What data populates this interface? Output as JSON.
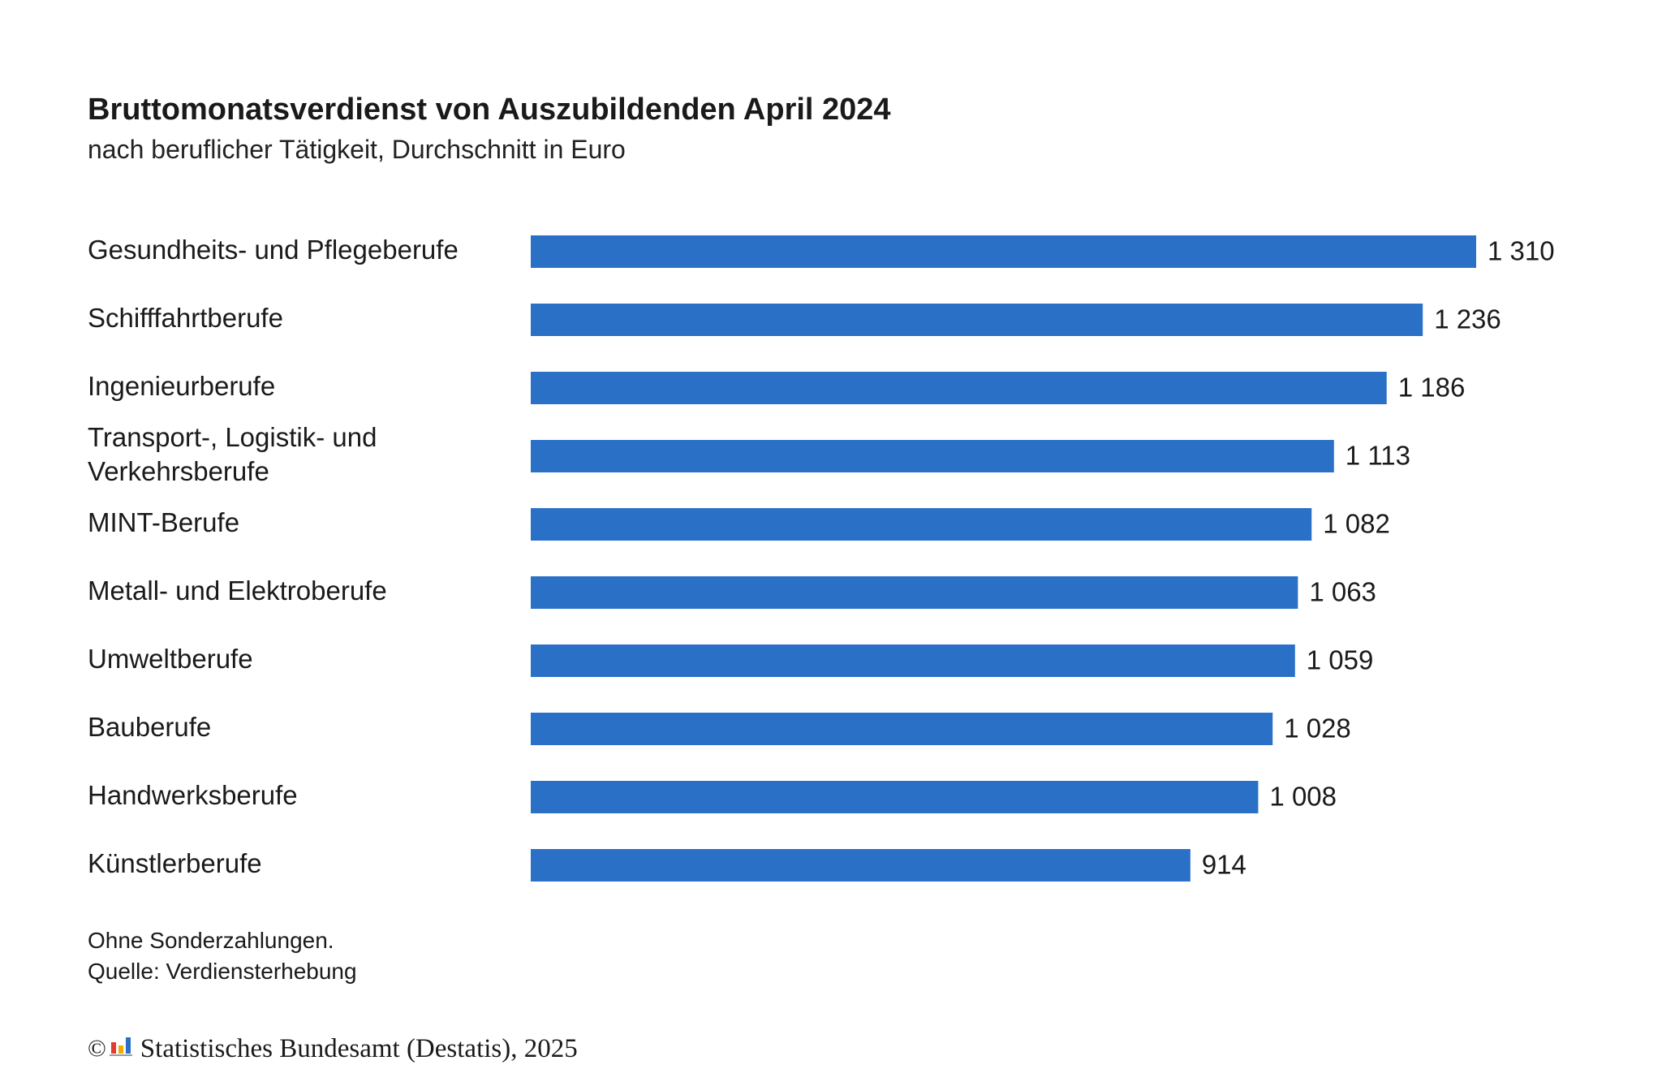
{
  "header": {
    "title": "Bruttomonatsverdienst von Auszubildenden April 2024",
    "subtitle": "nach beruflicher Tätigkeit, Durchschnitt in Euro"
  },
  "chart_data": {
    "type": "bar",
    "orientation": "horizontal",
    "title": "Bruttomonatsverdienst von Auszubildenden April 2024",
    "subtitle": "nach beruflicher Tätigkeit, Durchschnitt in Euro",
    "categories": [
      "Gesundheits- und Pflegeberufe",
      "Schifffahrtberufe",
      "Ingenieurberufe",
      "Transport-, Logistik- und Verkehrsberufe",
      "MINT-Berufe",
      "Metall- und Elektroberufe",
      "Umweltberufe",
      "Bauberufe",
      "Handwerksberufe",
      "Künstlerberufe"
    ],
    "category_lines": [
      [
        "Gesundheits- und Pflegeberufe"
      ],
      [
        "Schifffahrtberufe"
      ],
      [
        "Ingenieurberufe"
      ],
      [
        "Transport-, Logistik- und",
        "Verkehrsberufe"
      ],
      [
        "MINT-Berufe"
      ],
      [
        "Metall- und Elektroberufe"
      ],
      [
        "Umweltberufe"
      ],
      [
        "Bauberufe"
      ],
      [
        "Handwerksberufe"
      ],
      [
        "Künstlerberufe"
      ]
    ],
    "values": [
      1310,
      1236,
      1186,
      1113,
      1082,
      1063,
      1059,
      1028,
      1008,
      914
    ],
    "value_labels": [
      "1 310",
      "1 236",
      "1 186",
      "1 113",
      "1 082",
      "1 063",
      "1 059",
      "1 028",
      "1 008",
      "914"
    ],
    "xlabel": "",
    "ylabel": "",
    "xlim": [
      0,
      1310
    ],
    "grid": false,
    "legend": "none",
    "bar_color": "#2970c6"
  },
  "notes": {
    "line1": "Ohne Sonderzahlungen.",
    "line2": "Quelle: Verdiensterhebung"
  },
  "credit": {
    "copyright_symbol": "©",
    "text": "Statistisches Bundesamt (Destatis), 2025",
    "logo_colors": [
      "#e03c31",
      "#f2a900",
      "#2970c6"
    ]
  }
}
